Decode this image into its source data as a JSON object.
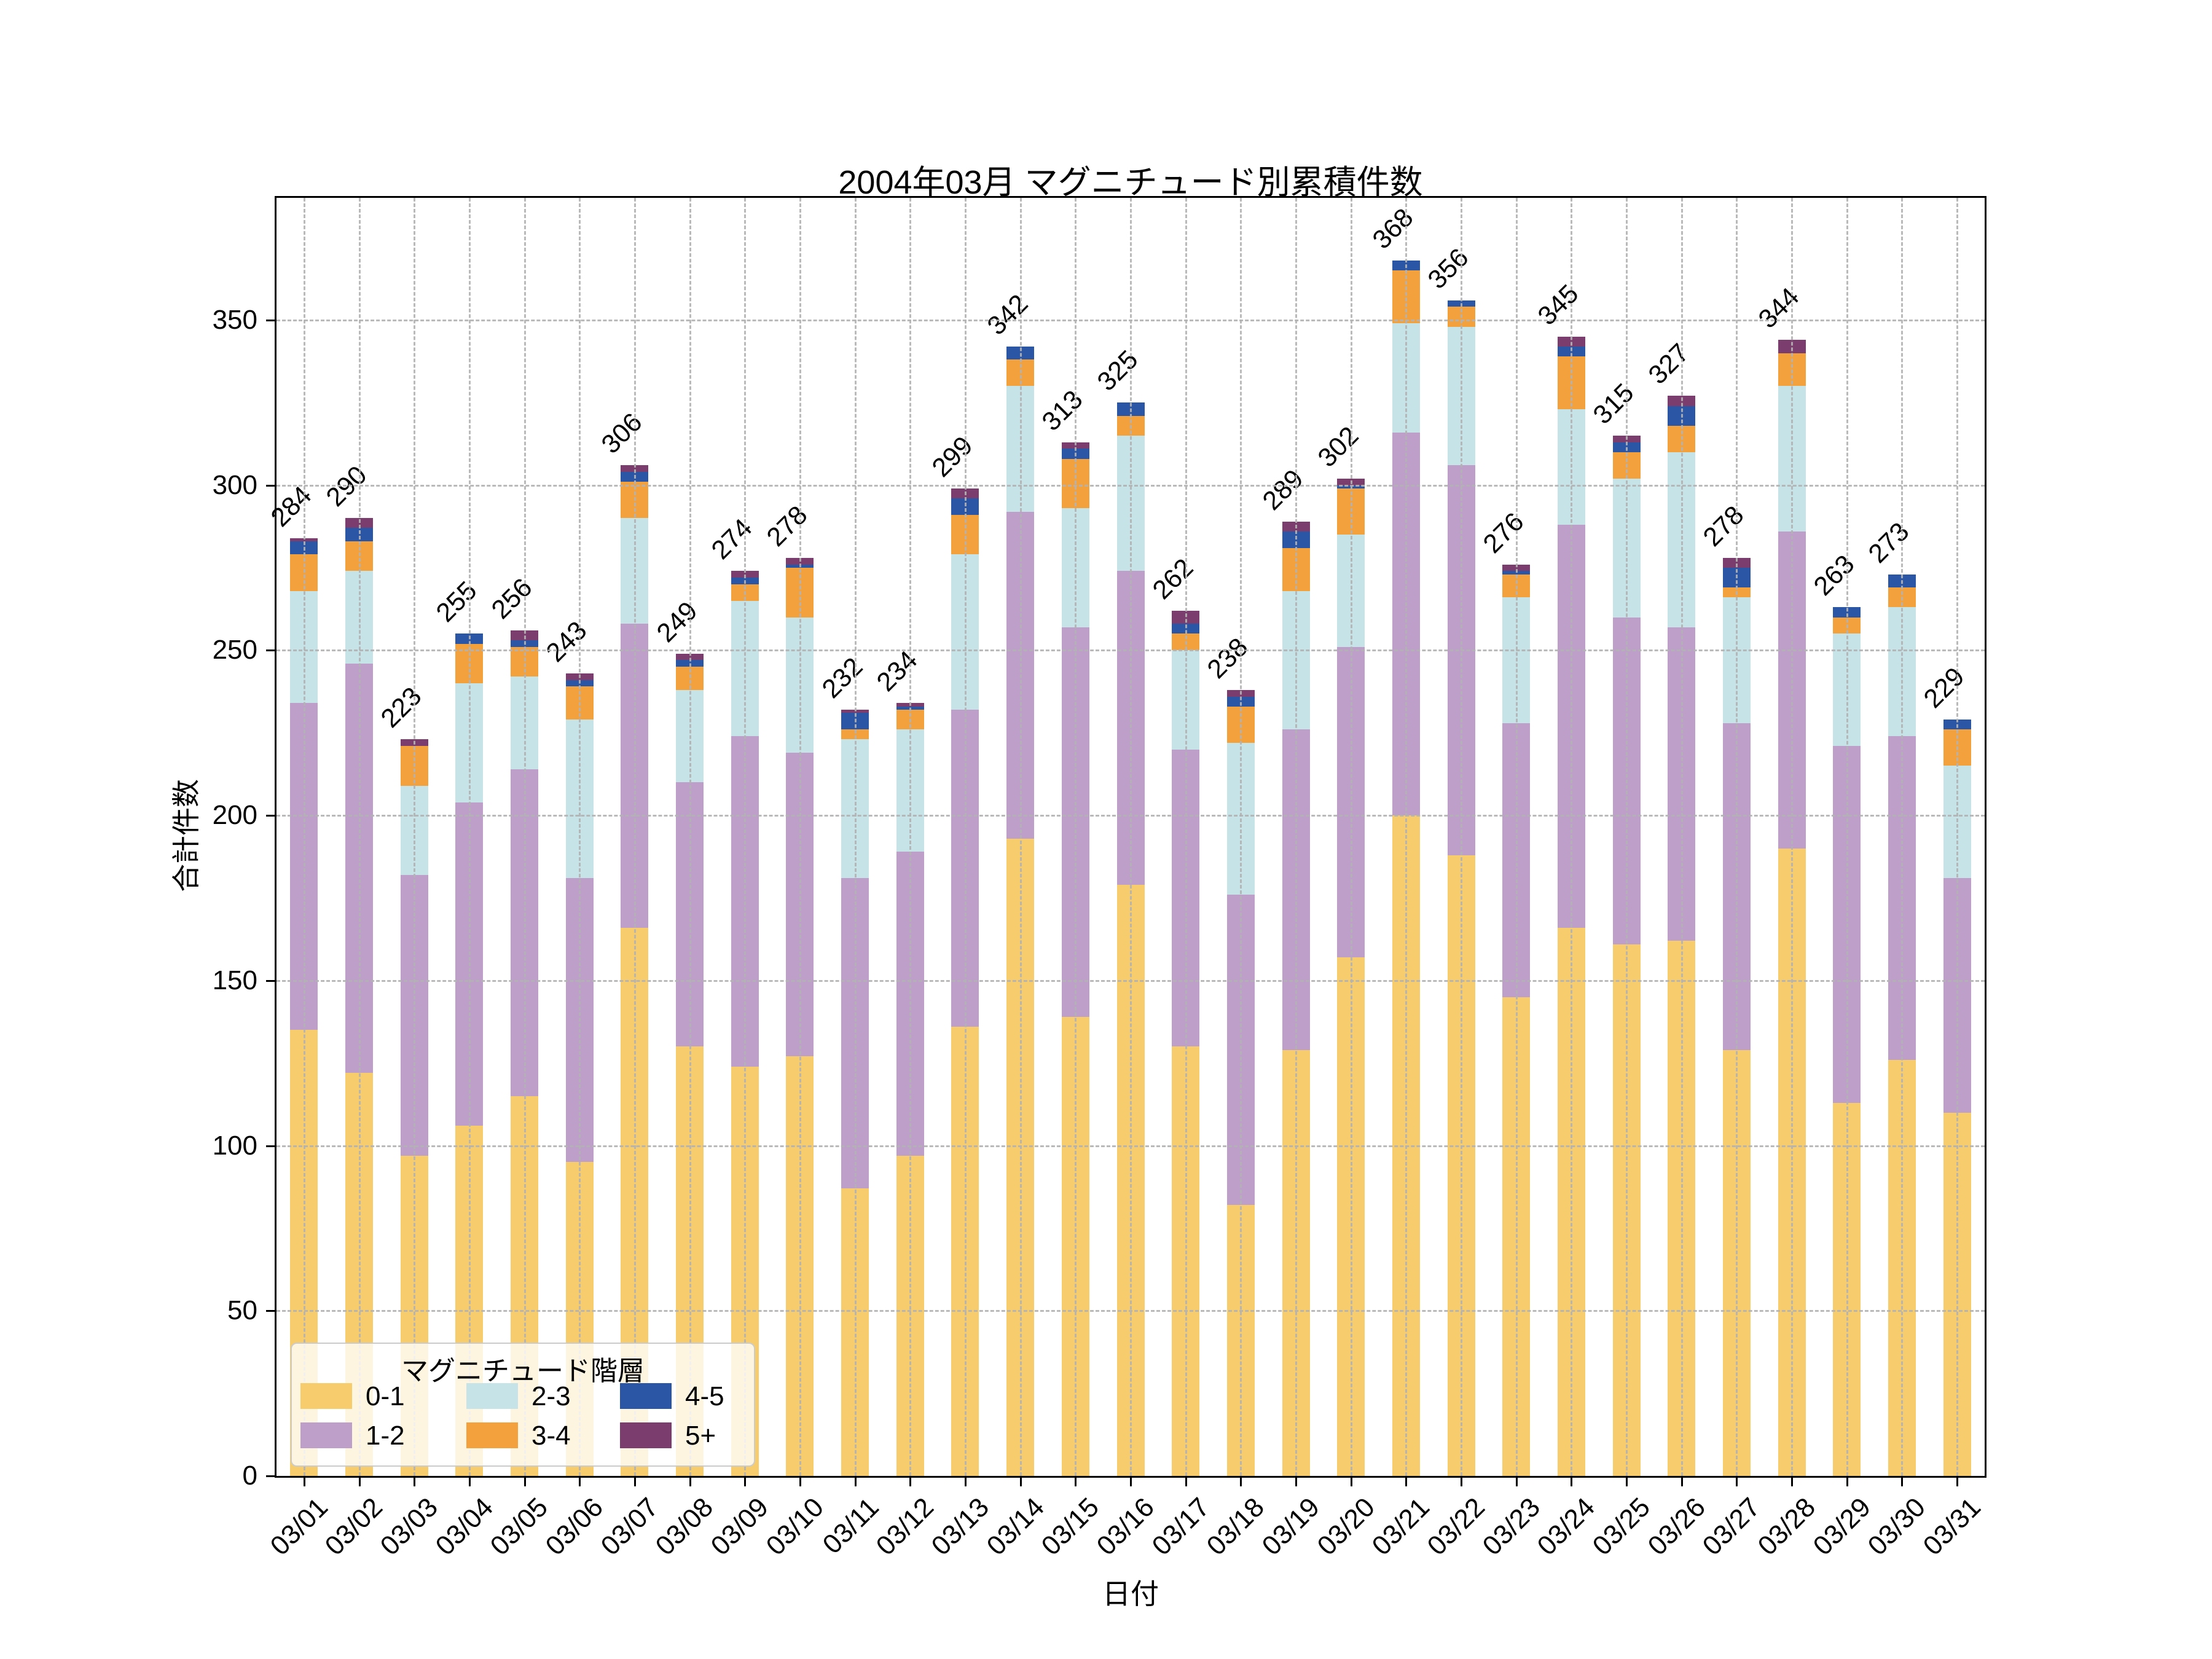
{
  "title": "2004年03月 マグニチュード別累積件数",
  "axes": {
    "x_label": "日付",
    "y_label": "合計件数",
    "y_ticks": [
      0,
      50,
      100,
      150,
      200,
      250,
      300,
      350
    ]
  },
  "legend": {
    "title": "マグニチュード階層",
    "entries": [
      "0-1",
      "1-2",
      "2-3",
      "3-4",
      "4-5",
      "5+"
    ]
  },
  "chart_data": {
    "type": "bar",
    "stacked": true,
    "title": "2004年03月 マグニチュード別累積件数",
    "xlabel": "日付",
    "ylabel": "合計件数",
    "ylim": [
      0,
      387
    ],
    "grid": "dashed gray, horizontal every 50 and vertical at each date, drawn over bars",
    "legend_position": "lower left",
    "bar_value_labels_rotation_deg": 45,
    "x_tick_labels_rotation_deg": 45,
    "categories": [
      "03/01",
      "03/02",
      "03/03",
      "03/04",
      "03/05",
      "03/06",
      "03/07",
      "03/08",
      "03/09",
      "03/10",
      "03/11",
      "03/12",
      "03/13",
      "03/14",
      "03/15",
      "03/16",
      "03/17",
      "03/18",
      "03/19",
      "03/20",
      "03/21",
      "03/22",
      "03/23",
      "03/24",
      "03/25",
      "03/26",
      "03/27",
      "03/28",
      "03/29",
      "03/30",
      "03/31"
    ],
    "series": [
      {
        "name": "0-1",
        "color": "#F7CC6C",
        "values": [
          135,
          122,
          97,
          106,
          115,
          95,
          166,
          130,
          124,
          127,
          87,
          97,
          136,
          193,
          139,
          179,
          130,
          82,
          129,
          157,
          200,
          188,
          145,
          166,
          161,
          162,
          129,
          190,
          113,
          126,
          110
        ]
      },
      {
        "name": "1-2",
        "color": "#BD9FC9",
        "values": [
          99,
          124,
          85,
          98,
          99,
          86,
          92,
          80,
          100,
          92,
          94,
          92,
          96,
          99,
          118,
          95,
          90,
          94,
          97,
          94,
          116,
          118,
          83,
          122,
          99,
          95,
          99,
          96,
          108,
          98,
          71
        ]
      },
      {
        "name": "2-3",
        "color": "#C6E3E7",
        "values": [
          34,
          28,
          27,
          36,
          28,
          48,
          32,
          28,
          41,
          41,
          42,
          37,
          47,
          38,
          36,
          41,
          30,
          46,
          42,
          34,
          33,
          42,
          38,
          35,
          42,
          53,
          38,
          44,
          34,
          39,
          34
        ]
      },
      {
        "name": "3-4",
        "color": "#F2A13C",
        "values": [
          11,
          9,
          12,
          12,
          9,
          10,
          11,
          7,
          5,
          15,
          3,
          6,
          12,
          8,
          15,
          6,
          5,
          11,
          13,
          14,
          16,
          6,
          7,
          16,
          8,
          8,
          3,
          10,
          5,
          6,
          11
        ]
      },
      {
        "name": "4-5",
        "color": "#2B56A5",
        "values": [
          4,
          4,
          0,
          3,
          2,
          2,
          3,
          2,
          2,
          1,
          5,
          1,
          5,
          4,
          3,
          4,
          3,
          3,
          5,
          1,
          3,
          2,
          1,
          3,
          3,
          6,
          6,
          0,
          3,
          4,
          3
        ]
      },
      {
        "name": "5+",
        "color": "#7B3D6D",
        "values": [
          1,
          3,
          2,
          0,
          3,
          2,
          2,
          2,
          2,
          2,
          1,
          1,
          3,
          0,
          2,
          0,
          4,
          2,
          3,
          2,
          0,
          0,
          2,
          3,
          2,
          3,
          3,
          4,
          0,
          0,
          0
        ]
      }
    ],
    "totals": [
      284,
      290,
      223,
      255,
      256,
      243,
      306,
      249,
      274,
      278,
      232,
      234,
      299,
      342,
      313,
      325,
      262,
      238,
      289,
      302,
      368,
      356,
      276,
      345,
      315,
      327,
      278,
      344,
      263,
      273,
      229
    ]
  }
}
